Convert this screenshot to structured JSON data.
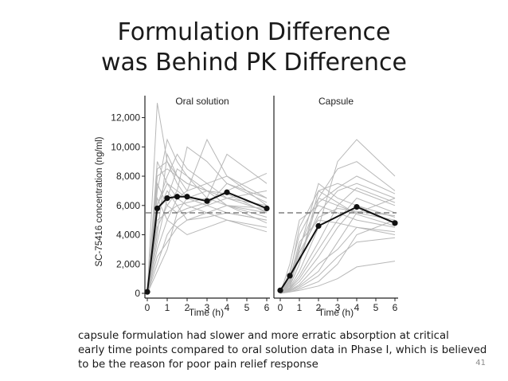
{
  "slide": {
    "title_line1": "Formulation Difference",
    "title_line2": "was Behind PK Difference",
    "caption_line1": "capsule formulation had slower and more erratic absorption at critical",
    "caption_line2": "early time points compared to oral solution data in Phase I, which is believed",
    "caption_line3": "to be the reason for poor pain relief response",
    "slide_number": "41"
  },
  "chart_data": {
    "type": "line",
    "ylabel": "SC-75416 concentration (ng/ml)",
    "xlabel": "Time (h)",
    "ylim": [
      0,
      13500
    ],
    "yticks": [
      0,
      2000,
      4000,
      6000,
      8000,
      10000,
      12000
    ],
    "ytick_labels": [
      "0",
      "2,000",
      "4,000",
      "6,000",
      "8,000",
      "10,000",
      "12,000"
    ],
    "xlim": [
      0,
      6
    ],
    "xticks": [
      0,
      1,
      2,
      3,
      4,
      5,
      6
    ],
    "reference_line_y": 5500,
    "colors": {
      "individual": "#b8b8b8",
      "mean": "#111111",
      "reference": "#666666"
    },
    "panels": [
      {
        "title": "Oral solution",
        "mean": {
          "x": [
            0,
            0.5,
            1,
            1.5,
            2,
            3,
            4,
            6
          ],
          "y": [
            100,
            5800,
            6500,
            6600,
            6600,
            6300,
            6900,
            5800
          ]
        },
        "individuals": [
          {
            "x": [
              0,
              0.5,
              1,
              1.5,
              2,
              3,
              4,
              6
            ],
            "y": [
              0,
              13000,
              9000,
              8000,
              7500,
              7000,
              6800,
              5500
            ]
          },
          {
            "x": [
              0,
              0.5,
              1,
              1.5,
              2,
              3,
              4,
              6
            ],
            "y": [
              0,
              3000,
              5000,
              6500,
              7000,
              7500,
              8000,
              6000
            ]
          },
          {
            "x": [
              0,
              0.5,
              1,
              1.5,
              2,
              3,
              4,
              6
            ],
            "y": [
              0,
              7000,
              10500,
              9000,
              8000,
              6500,
              6000,
              5200
            ]
          },
          {
            "x": [
              0,
              0.5,
              1,
              1.5,
              2,
              3,
              4,
              6
            ],
            "y": [
              0,
              4500,
              6000,
              7000,
              10000,
              9000,
              7500,
              6500
            ]
          },
          {
            "x": [
              0,
              0.5,
              1,
              1.5,
              2,
              3,
              4,
              6
            ],
            "y": [
              0,
              6000,
              7500,
              7000,
              6500,
              6000,
              5500,
              5000
            ]
          },
          {
            "x": [
              0,
              0.5,
              1,
              1.5,
              2,
              3,
              4,
              6
            ],
            "y": [
              0,
              2000,
              4000,
              5000,
              5500,
              6000,
              6500,
              7000
            ]
          },
          {
            "x": [
              0,
              0.5,
              1,
              1.5,
              2,
              3,
              4,
              6
            ],
            "y": [
              0,
              8000,
              8500,
              8000,
              7000,
              10500,
              8000,
              6500
            ]
          },
          {
            "x": [
              0,
              0.5,
              1,
              1.5,
              2,
              3,
              4,
              6
            ],
            "y": [
              0,
              5000,
              5500,
              6000,
              6200,
              6500,
              9500,
              7500
            ]
          },
          {
            "x": [
              0,
              0.5,
              1,
              1.5,
              2,
              3,
              4,
              6
            ],
            "y": [
              0,
              9000,
              7500,
              6500,
              6000,
              5500,
              5000,
              4500
            ]
          },
          {
            "x": [
              0,
              0.5,
              1,
              1.5,
              2,
              3,
              4,
              6
            ],
            "y": [
              0,
              3500,
              6500,
              8500,
              8000,
              7000,
              6000,
              5500
            ]
          },
          {
            "x": [
              0,
              0.5,
              1,
              1.5,
              2,
              3,
              4,
              6
            ],
            "y": [
              0,
              6500,
              5000,
              4500,
              4000,
              4500,
              5000,
              4200
            ]
          },
          {
            "x": [
              0,
              0.5,
              1,
              1.5,
              2,
              3,
              4,
              6
            ],
            "y": [
              0,
              4000,
              9500,
              8000,
              7500,
              7000,
              6500,
              6000
            ]
          },
          {
            "x": [
              0,
              0.5,
              1,
              1.5,
              2,
              3,
              4,
              6
            ],
            "y": [
              0,
              7500,
              6000,
              5500,
              5800,
              6200,
              7000,
              8200
            ]
          },
          {
            "x": [
              0,
              0.5,
              1,
              1.5,
              2,
              3,
              4,
              6
            ],
            "y": [
              0,
              5500,
              7000,
              6000,
              5000,
              5500,
              6000,
              5800
            ]
          },
          {
            "x": [
              0,
              0.5,
              1,
              1.5,
              2,
              3,
              4,
              6
            ],
            "y": [
              0,
              2500,
              3500,
              4500,
              5000,
              5200,
              5500,
              5000
            ]
          },
          {
            "x": [
              0,
              0.5,
              1,
              1.5,
              2,
              3,
              4,
              6
            ],
            "y": [
              0,
              8500,
              9000,
              7500,
              6500,
              6000,
              7500,
              6200
            ]
          },
          {
            "x": [
              0,
              0.5,
              1,
              1.5,
              2,
              3,
              4,
              6
            ],
            "y": [
              0,
              6000,
              8000,
              9500,
              8500,
              7500,
              6500,
              5600
            ]
          },
          {
            "x": [
              0,
              0.5,
              1,
              1.5,
              2,
              3,
              4,
              6
            ],
            "y": [
              0,
              1500,
              3000,
              5500,
              6500,
              7000,
              6000,
              4800
            ]
          }
        ]
      },
      {
        "title": "Capsule",
        "mean": {
          "x": [
            0,
            0.5,
            2,
            4,
            6
          ],
          "y": [
            200,
            1200,
            4600,
            5900,
            4800
          ]
        },
        "individuals": [
          {
            "x": [
              0,
              0.5,
              1,
              2,
              3,
              4,
              6
            ],
            "y": [
              0,
              500,
              2000,
              7000,
              7500,
              7000,
              6000
            ]
          },
          {
            "x": [
              0,
              0.5,
              1,
              2,
              3,
              4,
              6
            ],
            "y": [
              0,
              300,
              1000,
              3000,
              5000,
              6500,
              5500
            ]
          },
          {
            "x": [
              0,
              0.5,
              1,
              2,
              3,
              4,
              6
            ],
            "y": [
              0,
              1500,
              4000,
              6500,
              6000,
              5500,
              5000
            ]
          },
          {
            "x": [
              0,
              0.5,
              1,
              2,
              3,
              4,
              6
            ],
            "y": [
              0,
              200,
              500,
              1500,
              3500,
              5500,
              6500
            ]
          },
          {
            "x": [
              0,
              0.5,
              1,
              2,
              3,
              4,
              6
            ],
            "y": [
              0,
              800,
              3000,
              7500,
              6500,
              6000,
              5200
            ]
          },
          {
            "x": [
              0,
              0.5,
              1,
              2,
              3,
              4,
              6
            ],
            "y": [
              0,
              100,
              300,
              800,
              2000,
              4000,
              5000
            ]
          },
          {
            "x": [
              0,
              0.5,
              1,
              2,
              3,
              4,
              6
            ],
            "y": [
              0,
              2000,
              5000,
              6000,
              5500,
              5000,
              4500
            ]
          },
          {
            "x": [
              0,
              0.5,
              1,
              2,
              3,
              4,
              6
            ],
            "y": [
              0,
              400,
              1500,
              4500,
              9000,
              10500,
              8000
            ]
          },
          {
            "x": [
              0,
              0.5,
              1,
              2,
              3,
              4,
              6
            ],
            "y": [
              0,
              600,
              2500,
              5500,
              7000,
              7500,
              6500
            ]
          },
          {
            "x": [
              0,
              0.5,
              1,
              2,
              3,
              4,
              6
            ],
            "y": [
              0,
              250,
              800,
              2500,
              4500,
              6000,
              4800
            ]
          },
          {
            "x": [
              0,
              0.5,
              1,
              2,
              3,
              4,
              6
            ],
            "y": [
              0,
              1000,
              3500,
              5000,
              4800,
              4500,
              4000
            ]
          },
          {
            "x": [
              0,
              0.5,
              1,
              2,
              3,
              4,
              6
            ],
            "y": [
              0,
              150,
              400,
              1200,
              2500,
              3500,
              3800
            ]
          },
          {
            "x": [
              0,
              0.5,
              1,
              2,
              3,
              4,
              6
            ],
            "y": [
              0,
              500,
              2000,
              6500,
              8500,
              9000,
              7000
            ]
          },
          {
            "x": [
              0,
              0.5,
              1,
              2,
              3,
              4,
              6
            ],
            "y": [
              0,
              700,
              2800,
              5200,
              5800,
              5600,
              5300
            ]
          },
          {
            "x": [
              0,
              0.5,
              1,
              2,
              3,
              4,
              6
            ],
            "y": [
              0,
              350,
              1200,
              3500,
              6000,
              7200,
              6200
            ]
          },
          {
            "x": [
              0,
              0.5,
              1,
              2,
              3,
              4,
              6
            ],
            "y": [
              0,
              1200,
              4500,
              7000,
              6200,
              5400,
              4600
            ]
          },
          {
            "x": [
              0,
              0.5,
              1,
              2,
              3,
              4,
              6
            ],
            "y": [
              0,
              200,
              600,
              2000,
              3000,
              4500,
              4200
            ]
          },
          {
            "x": [
              0,
              0.5,
              1,
              2,
              3,
              4,
              6
            ],
            "y": [
              0,
              900,
              3200,
              6200,
              7200,
              8000,
              6800
            ]
          },
          {
            "x": [
              0,
              0.5,
              1,
              2,
              3,
              4,
              6
            ],
            "y": [
              0,
              100,
              200,
              500,
              1000,
              1800,
              2200
            ]
          }
        ]
      }
    ]
  }
}
